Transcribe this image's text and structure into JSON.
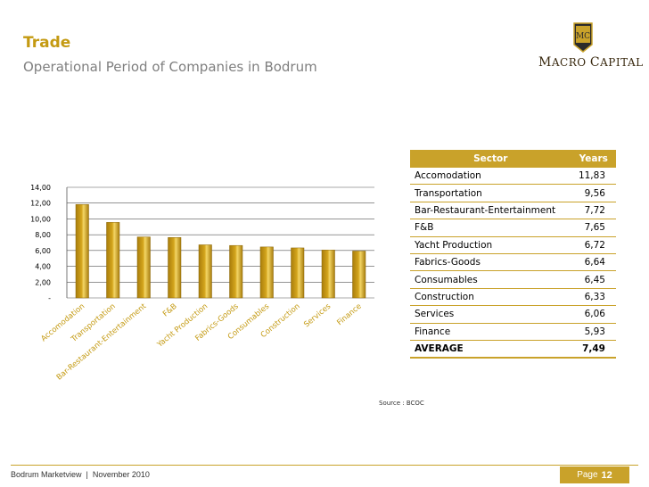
{
  "header": {
    "title": "Trade",
    "subtitle": "Operational Period of Companies in Bodrum"
  },
  "logo": {
    "letters": "MC",
    "name_first_initial": "M",
    "name_first_rest": "ACRO",
    "name_second_initial": "C",
    "name_second_rest": "APITAL",
    "colors": {
      "gold": "#c9a22a",
      "dark": "#3a2a10"
    }
  },
  "chart_data": {
    "type": "bar",
    "categories": [
      "Accomodation",
      "Transportation",
      "Bar-Restaurant-Entertainment",
      "F&B",
      "Yacht Production",
      "Fabrics-Goods",
      "Consumables",
      "Construction",
      "Services",
      "Finance"
    ],
    "values": [
      11.83,
      9.56,
      7.72,
      7.65,
      6.72,
      6.64,
      6.45,
      6.33,
      6.06,
      5.93
    ],
    "ylim": [
      0,
      14
    ],
    "yticks": [
      0,
      2,
      4,
      6,
      8,
      10,
      12,
      14
    ],
    "ytick_labels": [
      "-",
      "2,00",
      "4,00",
      "6,00",
      "8,00",
      "10,00",
      "12,00",
      "14,00"
    ],
    "title": "",
    "xlabel": "",
    "ylabel": "",
    "grid": true,
    "bar_color": "#d4a51c"
  },
  "table": {
    "headers": {
      "sector": "Sector",
      "years": "Years"
    },
    "rows": [
      {
        "sector": "Accomodation",
        "years": "11,83"
      },
      {
        "sector": "Transportation",
        "years": "9,56"
      },
      {
        "sector": "Bar-Restaurant-Entertainment",
        "years": "7,72"
      },
      {
        "sector": "F&B",
        "years": "7,65"
      },
      {
        "sector": "Yacht Production",
        "years": "6,72"
      },
      {
        "sector": "Fabrics-Goods",
        "years": "6,64"
      },
      {
        "sector": "Consumables",
        "years": "6,45"
      },
      {
        "sector": "Construction",
        "years": "6,33"
      },
      {
        "sector": "Services",
        "years": "6,06"
      },
      {
        "sector": "Finance",
        "years": "5,93"
      }
    ],
    "average": {
      "label": "AVERAGE",
      "years": "7,49"
    }
  },
  "source": "Source : BCOC",
  "footer": {
    "text": "Bodrum Marketview  |  November 2010",
    "page_label": "Page",
    "page_number": "12"
  }
}
